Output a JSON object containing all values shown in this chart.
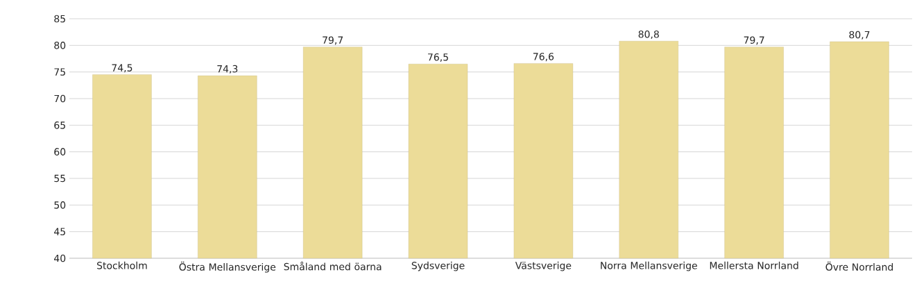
{
  "chart_data": {
    "type": "bar",
    "categories": [
      "Stockholm",
      "Östra Mellansverige",
      "Småland med öarna",
      "Sydsverige",
      "Västsverige",
      "Norra Mellansverige",
      "Mellersta Norrland",
      "Övre Norrland"
    ],
    "values": [
      74.5,
      74.3,
      79.7,
      76.5,
      76.6,
      80.8,
      79.7,
      80.7
    ],
    "value_labels": [
      "74,5",
      "74,3",
      "79,7",
      "76,5",
      "76,6",
      "80,8",
      "79,7",
      "80,7"
    ],
    "color": "#ecdc98",
    "ylim": [
      40,
      85
    ],
    "yticks": [
      40,
      45,
      50,
      55,
      60,
      65,
      70,
      75,
      80,
      85
    ],
    "grid": "y"
  }
}
